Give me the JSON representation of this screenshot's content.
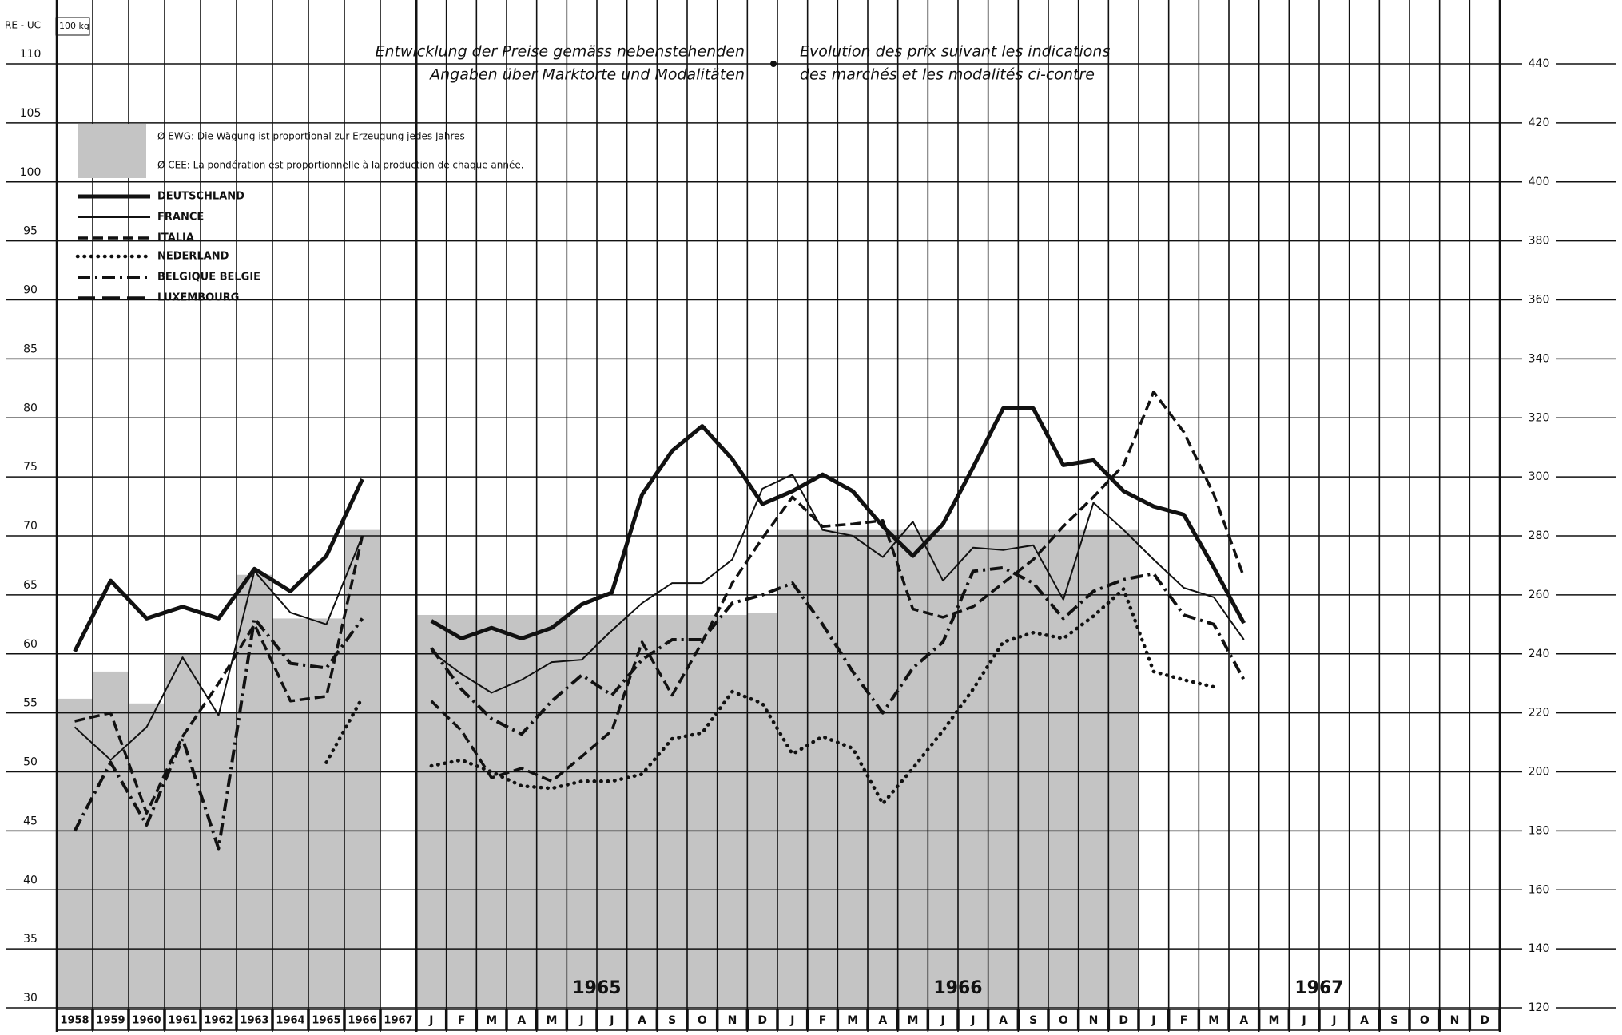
{
  "chart_data": {
    "type": "line",
    "unit_label": "RE - UC",
    "unit_box": "100 kg",
    "title_de": [
      "Entwicklung der Preise gemäss nebenstehenden",
      "Angaben über Marktorte und Modalitäten"
    ],
    "title_fr": [
      "Evolution des prix suivant les indications",
      "des marchés et les modalités ci-contre"
    ],
    "average_notes": [
      "Ø EWG: Die Wägung ist proportional zur Erzeugung jedes Jahres",
      "Ø CEE: La pondération est proportionnelle à la production de chaque année."
    ],
    "categories": [
      "1958",
      "1959",
      "1960",
      "1961",
      "1962",
      "1963",
      "1964",
      "1965",
      "1966",
      "1967",
      "J",
      "F",
      "M",
      "A",
      "M",
      "J",
      "J",
      "A",
      "S",
      "O",
      "N",
      "D",
      "J",
      "F",
      "M",
      "A",
      "M",
      "J",
      "J",
      "A",
      "S",
      "O",
      "N",
      "D",
      "J",
      "F",
      "M",
      "A",
      "M",
      "J",
      "J",
      "A",
      "S",
      "O",
      "N",
      "D"
    ],
    "period_labels": [
      "1965",
      "1966",
      "1967"
    ],
    "average": {
      "color": "#c4c4c4",
      "values": [
        56.2,
        58.5,
        55.8,
        60,
        55,
        66.7,
        63,
        63,
        70.5,
        null,
        63.3,
        63.3,
        63.3,
        63.3,
        63.3,
        63.3,
        63.3,
        63.3,
        63.3,
        63.3,
        63.3,
        63.5,
        70.5,
        70.5,
        70.5,
        70.5,
        70.5,
        70.5,
        70.5,
        70.5,
        70.5,
        70.5,
        70.5,
        70.5,
        null,
        null,
        null,
        null,
        null,
        null,
        null,
        null,
        null,
        null,
        null,
        null
      ]
    },
    "series": [
      {
        "name": "DEUTSCHLAND",
        "color": "#111111",
        "style": "thick",
        "values": [
          60.2,
          66.2,
          63,
          64,
          63,
          67.2,
          65.3,
          68.3,
          74.8,
          null,
          62.8,
          61.3,
          62.2,
          61.3,
          62.2,
          64.2,
          65.2,
          73.5,
          77.2,
          79.3,
          76.5,
          72.7,
          73.8,
          75.2,
          73.8,
          70.8,
          68.3,
          71,
          75.8,
          80.8,
          80.8,
          76,
          76.4,
          73.8,
          72.5,
          71.8,
          67.3,
          62.6,
          null,
          null,
          null,
          null,
          null,
          null,
          null,
          null
        ]
      },
      {
        "name": "FRANCE",
        "color": "#111111",
        "style": "thin",
        "values": [
          53.8,
          51,
          53.8,
          59.7,
          54.8,
          67,
          63.5,
          62.5,
          70,
          null,
          60.2,
          58.3,
          56.7,
          57.8,
          59.3,
          59.5,
          62,
          64.3,
          66,
          66,
          68,
          74,
          75.2,
          70.5,
          70,
          68.2,
          71.2,
          66.2,
          69,
          68.8,
          69.2,
          64.6,
          72.8,
          70.5,
          68,
          65.6,
          64.8,
          61.2,
          null,
          null,
          null,
          null,
          null,
          null,
          null,
          null
        ]
      },
      {
        "name": "ITALIA",
        "color": "#111111",
        "style": "dashed",
        "values": [
          54.3,
          55,
          46.5,
          53,
          57.5,
          62.5,
          56,
          56.4,
          70,
          null,
          56,
          53.5,
          49.5,
          50.3,
          49.2,
          51.3,
          53.5,
          61,
          56.5,
          61,
          66,
          69.8,
          73.3,
          70.8,
          71,
          71.3,
          63.8,
          63.1,
          64,
          66,
          68,
          70.8,
          73.3,
          76,
          82.2,
          78.8,
          73.5,
          66.5,
          null,
          null,
          null,
          null,
          null,
          null,
          null,
          null
        ]
      },
      {
        "name": "NEDERLAND",
        "color": "#111111",
        "style": "dotted",
        "values": [
          null,
          null,
          null,
          null,
          null,
          null,
          null,
          50.8,
          56.3,
          null,
          50.5,
          51,
          50,
          48.8,
          48.6,
          49.2,
          49.2,
          49.8,
          52.8,
          53.3,
          56.8,
          55.8,
          51.5,
          53,
          52,
          47.3,
          50.3,
          53.5,
          57,
          61,
          61.8,
          61.3,
          63.2,
          65.5,
          58.5,
          57.8,
          57.2,
          null,
          null,
          null,
          null,
          null,
          null,
          null,
          null,
          null
        ]
      },
      {
        "name": "BELGIQUE BELGIE",
        "color": "#111111",
        "style": "dashdot",
        "values": [
          45,
          50.8,
          45.5,
          52.8,
          43.5,
          63,
          59.2,
          58.8,
          63,
          null,
          60.5,
          57,
          54.5,
          53.2,
          56,
          58.2,
          56.5,
          59.5,
          61.2,
          61.2,
          64.3,
          65,
          66,
          62.5,
          58.5,
          55,
          58.8,
          61,
          67,
          67.3,
          66,
          63,
          65.3,
          66.3,
          66.8,
          63.3,
          62.5,
          57.8,
          null,
          null,
          null,
          null,
          null,
          null,
          null,
          null
        ]
      },
      {
        "name": "LUXEMBOURG",
        "color": "#111111",
        "style": "longdash",
        "values": [
          null,
          null,
          null,
          null,
          null,
          null,
          null,
          null,
          null,
          null,
          null,
          null,
          null,
          null,
          null,
          null,
          null,
          null,
          null,
          null,
          null,
          null,
          null,
          null,
          null,
          null,
          null,
          null,
          null,
          null,
          null,
          null,
          null,
          null,
          null,
          null,
          null,
          null,
          null,
          null,
          null,
          null,
          null,
          null,
          null,
          null
        ]
      }
    ],
    "ylim": [
      30,
      110
    ],
    "yticks": [
      30,
      35,
      40,
      45,
      50,
      55,
      60,
      65,
      70,
      75,
      80,
      85,
      90,
      95,
      100,
      105,
      110
    ],
    "y2lim": [
      120,
      440
    ],
    "y2ticks": [
      120,
      140,
      160,
      180,
      200,
      220,
      240,
      260,
      280,
      300,
      320,
      340,
      360,
      380,
      400,
      420,
      440
    ],
    "grid": true
  }
}
